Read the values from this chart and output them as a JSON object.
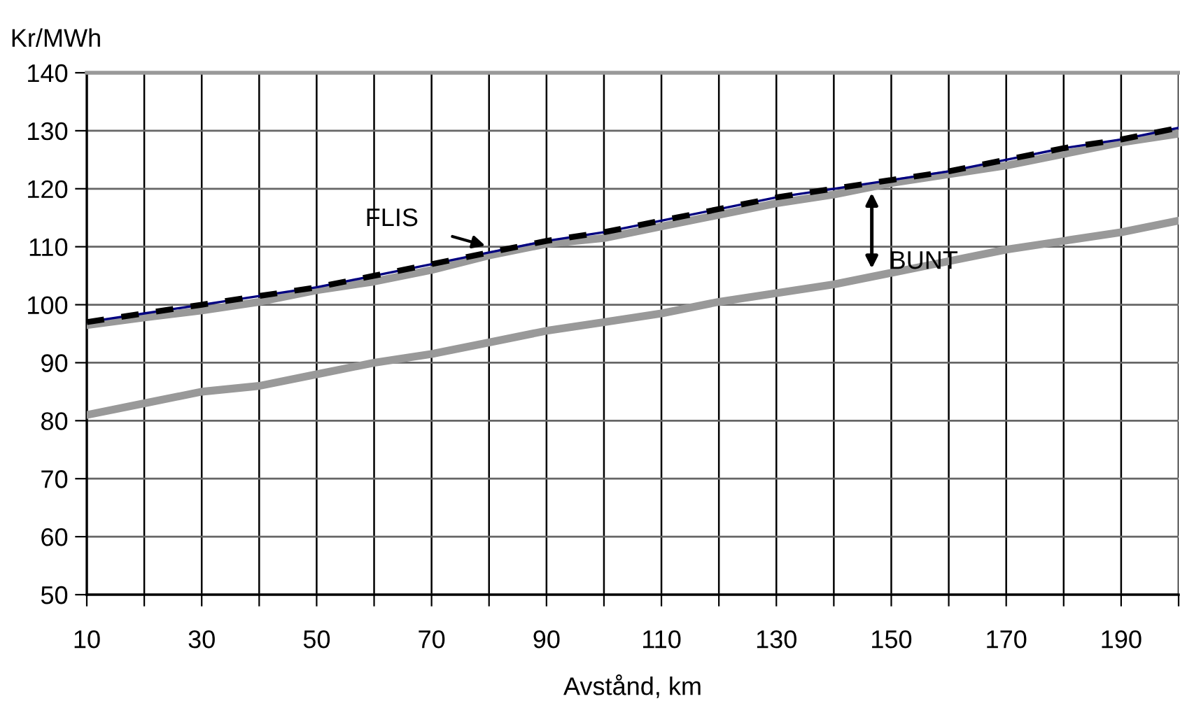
{
  "chart_data": {
    "type": "line",
    "xlabel": "Avstånd, km",
    "ylabel": "Kr/MWh",
    "x": [
      10,
      20,
      30,
      40,
      50,
      60,
      70,
      80,
      90,
      100,
      110,
      120,
      130,
      140,
      150,
      160,
      170,
      180,
      190,
      200
    ],
    "series": [
      {
        "color": "#999999",
        "line_style": "solid",
        "values": [
          81,
          83,
          85,
          86,
          88,
          90,
          91.5,
          93.5,
          95.5,
          97,
          98.5,
          100.5,
          102,
          103.5,
          105.5,
          107.5,
          109.5,
          111,
          112.5,
          114.5
        ]
      },
      {
        "color": "#999999",
        "line_style": "solid",
        "values": [
          96.5,
          97.8,
          99,
          100.5,
          102.5,
          104,
          106,
          108.5,
          110.5,
          111.5,
          113.5,
          115.5,
          117.5,
          119,
          121,
          122.5,
          124,
          126,
          128,
          129.5
        ]
      },
      {
        "color": "#000080",
        "line_style": "solid",
        "values": [
          97,
          98.5,
          100,
          101.5,
          103,
          105,
          107,
          109,
          111,
          112.5,
          114.5,
          116.5,
          118.5,
          120,
          121.5,
          123,
          125,
          127,
          128.5,
          130.5
        ]
      },
      {
        "color": "#000000",
        "line_style": "dashed",
        "values": [
          97,
          98.5,
          100,
          101.5,
          103,
          105,
          107,
          109,
          111,
          112.5,
          114.5,
          116.5,
          118.5,
          120,
          121.5,
          123,
          125,
          127,
          128.5,
          130.5
        ]
      }
    ],
    "annotations": [
      {
        "text": "FLIS",
        "x": 80,
        "y": 110
      },
      "BUNT"
    ],
    "xlim": [
      10,
      200
    ],
    "xticks": [
      10,
      {
        "value": 20,
        "label": null
      },
      30,
      {
        "value": 40,
        "label": null
      },
      50,
      {
        "value": 60,
        "label": null
      },
      70,
      {
        "value": 80,
        "label": null
      },
      90,
      {
        "value": 100,
        "label": null
      },
      110,
      {
        "value": 120,
        "label": null
      },
      130,
      {
        "value": 140,
        "label": null
      },
      150,
      {
        "value": 160,
        "label": null
      },
      170,
      {
        "value": 180,
        "label": null
      },
      190,
      {
        "value": 200,
        "label": null
      }
    ],
    "ylim": [
      50,
      140
    ],
    "yticks": [
      50,
      60,
      70,
      80,
      90,
      100,
      110,
      120,
      130,
      140
    ],
    "grid": true,
    "legend": false,
    "marker": "none"
  }
}
